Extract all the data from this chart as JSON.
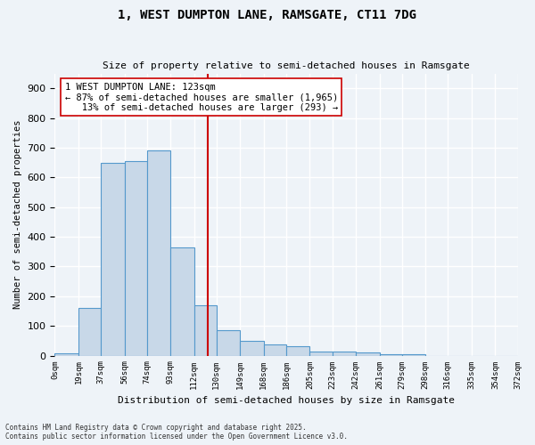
{
  "title": "1, WEST DUMPTON LANE, RAMSGATE, CT11 7DG",
  "subtitle": "Size of property relative to semi-detached houses in Ramsgate",
  "xlabel": "Distribution of semi-detached houses by size in Ramsgate",
  "ylabel": "Number of semi-detached properties",
  "bar_color": "#c8d8e8",
  "bar_edge_color": "#5599cc",
  "property_line": 123,
  "property_line_color": "#cc0000",
  "annotation_line1": "1 WEST DUMPTON LANE: 123sqm",
  "annotation_line2": "← 87% of semi-detached houses are smaller (1,965)",
  "annotation_line3": "   13% of semi-detached houses are larger (293) →",
  "categories": [
    "0sqm",
    "19sqm",
    "37sqm",
    "56sqm",
    "74sqm",
    "93sqm",
    "112sqm",
    "130sqm",
    "149sqm",
    "168sqm",
    "186sqm",
    "205sqm",
    "223sqm",
    "242sqm",
    "261sqm",
    "279sqm",
    "298sqm",
    "316sqm",
    "335sqm",
    "354sqm",
    "372sqm"
  ],
  "bin_edges": [
    0,
    19,
    37,
    56,
    74,
    93,
    112,
    130,
    149,
    168,
    186,
    205,
    223,
    242,
    261,
    279,
    298,
    316,
    335,
    354,
    372
  ],
  "values": [
    8,
    160,
    650,
    655,
    690,
    365,
    170,
    85,
    50,
    38,
    32,
    14,
    14,
    10,
    5,
    4,
    0,
    0,
    0,
    0
  ],
  "ylim": [
    0,
    950
  ],
  "yticks": [
    0,
    100,
    200,
    300,
    400,
    500,
    600,
    700,
    800,
    900
  ],
  "footnote": "Contains HM Land Registry data © Crown copyright and database right 2025.\nContains public sector information licensed under the Open Government Licence v3.0.",
  "background_color": "#eef3f8",
  "axes_bg_color": "#eef3f8",
  "grid_color": "#ffffff"
}
